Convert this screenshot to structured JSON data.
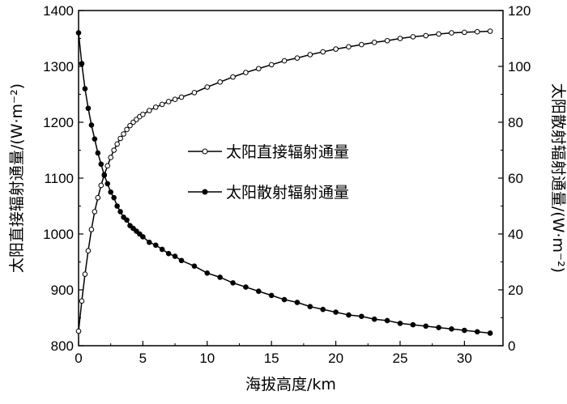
{
  "chart_data": {
    "type": "line",
    "xlabel": "海拔高度/km",
    "ylabel_left": "太阳直接辐射通量/(W·m⁻²)",
    "ylabel_right": "太阳散射辐射通量/(W·m⁻²)",
    "xlim": [
      0,
      33
    ],
    "ylim_left": [
      800,
      1400
    ],
    "ylim_right": [
      0,
      120
    ],
    "x_ticks": [
      0,
      5,
      10,
      15,
      20,
      25,
      30
    ],
    "y_ticks_left": [
      800,
      900,
      1000,
      1100,
      1200,
      1300,
      1400
    ],
    "y_ticks_right": [
      0,
      20,
      40,
      60,
      80,
      100,
      120
    ],
    "grid": false,
    "legend_position": "center",
    "series": [
      {
        "name": "太阳直接辐射通量",
        "axis": "left",
        "marker": "open-circle",
        "x": [
          0,
          0.25,
          0.5,
          0.75,
          1.0,
          1.25,
          1.5,
          1.75,
          2.0,
          2.25,
          2.5,
          2.75,
          3.0,
          3.25,
          3.5,
          3.75,
          4.0,
          4.25,
          4.5,
          4.75,
          5.0,
          5.5,
          6.0,
          6.5,
          7.0,
          7.5,
          8.0,
          9.0,
          10.0,
          11.0,
          12.0,
          13.0,
          14.0,
          15.0,
          16.0,
          17.0,
          18.0,
          19.0,
          20.0,
          21.0,
          22.0,
          23.0,
          24.0,
          25.0,
          26.0,
          27.0,
          28.0,
          29.0,
          30.0,
          31.0,
          32.0
        ],
        "values": [
          826,
          880,
          928,
          970,
          1008,
          1040,
          1065,
          1087,
          1106,
          1122,
          1137,
          1150,
          1161,
          1171,
          1179,
          1187,
          1194,
          1200,
          1205,
          1210,
          1214,
          1221,
          1227,
          1232,
          1237,
          1241,
          1245,
          1253,
          1263,
          1272,
          1281,
          1289,
          1296,
          1303,
          1310,
          1315,
          1321,
          1326,
          1331,
          1335,
          1339,
          1343,
          1346,
          1350,
          1353,
          1355,
          1358,
          1360,
          1361,
          1362,
          1363
        ]
      },
      {
        "name": "太阳散射辐射通量",
        "axis": "right",
        "marker": "filled-circle",
        "x": [
          0,
          0.25,
          0.5,
          0.75,
          1.0,
          1.25,
          1.5,
          1.75,
          2.0,
          2.25,
          2.5,
          2.75,
          3.0,
          3.25,
          3.5,
          3.75,
          4.0,
          4.25,
          4.5,
          4.75,
          5.0,
          5.5,
          6.0,
          6.5,
          7.0,
          7.5,
          8.0,
          9.0,
          10.0,
          11.0,
          12.0,
          13.0,
          14.0,
          15.0,
          16.0,
          17.0,
          18.0,
          19.0,
          20.0,
          21.0,
          22.0,
          23.0,
          24.0,
          25.0,
          26.0,
          27.0,
          28.0,
          29.0,
          30.0,
          31.0,
          32.0
        ],
        "values": [
          112,
          101,
          92,
          85,
          79,
          74,
          69,
          65,
          61,
          58,
          55,
          53,
          50,
          48,
          46,
          45,
          43,
          42,
          41,
          40,
          39,
          37,
          36,
          34.5,
          33,
          32,
          30.5,
          28.5,
          26,
          24.5,
          22.5,
          21,
          19.5,
          18,
          16.5,
          15.5,
          14,
          13,
          12,
          11,
          10.5,
          9.5,
          9,
          8,
          7.5,
          7,
          6.5,
          6,
          5.5,
          5,
          4.5
        ]
      }
    ]
  }
}
